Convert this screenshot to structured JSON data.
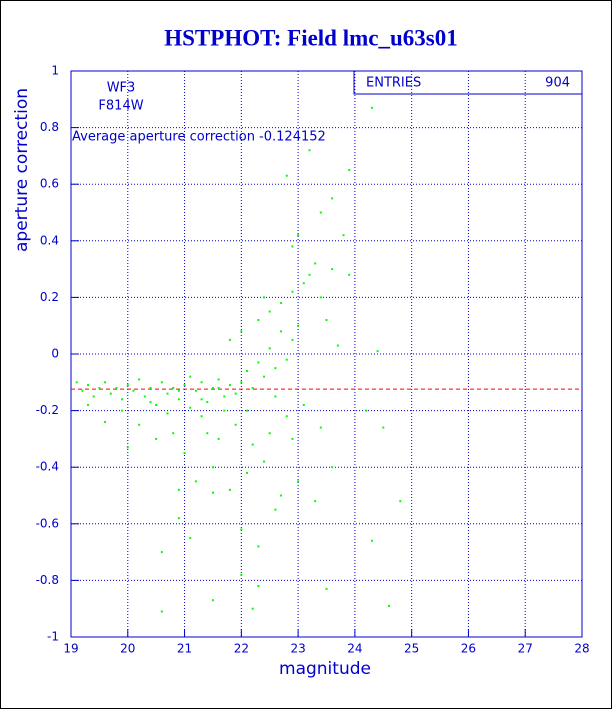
{
  "chart_data": {
    "type": "scatter",
    "title": "HSTPHOT: Field lmc_u63s01",
    "x_label": "magnitude",
    "y_label": "aperture correction",
    "annotations": [
      "WF3",
      "F814W"
    ],
    "average_label": "Average aperture correction -0.124152",
    "average": -0.124152,
    "average_color": "#ff0000",
    "stats": {
      "label": "ENTRIES",
      "value": 904
    },
    "color": "#00ff00",
    "grid": true,
    "xlim": [
      19,
      28
    ],
    "xticks": [
      19,
      20,
      21,
      22,
      23,
      24,
      25,
      26,
      27,
      28
    ],
    "ylim": [
      -1,
      1
    ],
    "yticks": [
      -1,
      -0.8,
      -0.6,
      -0.4,
      -0.2,
      0,
      0.2,
      0.4,
      0.6,
      0.8,
      1
    ],
    "x": [
      19.1,
      19.2,
      19.3,
      19.4,
      19.5,
      19.6,
      19.7,
      19.8,
      19.9,
      20.0,
      20.1,
      20.2,
      20.3,
      20.4,
      20.5,
      20.6,
      20.7,
      20.8,
      20.9,
      21.0,
      21.1,
      21.2,
      21.3,
      21.4,
      21.5,
      21.6,
      21.7,
      21.8,
      21.9,
      22.0,
      22.1,
      22.2,
      22.3,
      22.4,
      22.5,
      22.6,
      22.7,
      22.8,
      22.9,
      23.0,
      22.3,
      22.5,
      22.7,
      22.9,
      23.1,
      23.2,
      23.3,
      23.4,
      23.5,
      23.6,
      23.8,
      23.9,
      22.9,
      23.4,
      23.6,
      23.9,
      23.2,
      22.8,
      24.3,
      23.0,
      22.4,
      22.0,
      21.8,
      23.7,
      24.4,
      20.2,
      20.5,
      20.8,
      21.0,
      21.3,
      21.6,
      21.9,
      22.2,
      22.5,
      22.8,
      23.1,
      23.4,
      21.2,
      21.5,
      21.8,
      22.1,
      22.4,
      22.7,
      23.0,
      23.6,
      24.2,
      24.5,
      20.9,
      20.9,
      21.5,
      22.0,
      22.3,
      22.6,
      23.3,
      24.3,
      24.8,
      20.6,
      21.1,
      22.0,
      22.3,
      23.5,
      21.5,
      22.2,
      20.6,
      24.6,
      19.9,
      19.6,
      19.3,
      20.0,
      21.7,
      21.4,
      22.9,
      21.1,
      20.7,
      22.6,
      22.1,
      21.6,
      21.3,
      20.4,
      20.9
    ],
    "values": [
      -0.1,
      -0.13,
      -0.11,
      -0.15,
      -0.12,
      -0.1,
      -0.14,
      -0.12,
      -0.16,
      -0.11,
      -0.13,
      -0.09,
      -0.15,
      -0.12,
      -0.18,
      -0.1,
      -0.14,
      -0.12,
      -0.16,
      -0.11,
      -0.08,
      -0.13,
      -0.1,
      -0.17,
      -0.12,
      -0.09,
      -0.15,
      -0.11,
      -0.14,
      -0.1,
      -0.06,
      -0.12,
      -0.03,
      -0.08,
      0.02,
      -0.05,
      0.08,
      -0.02,
      0.05,
      0.1,
      0.12,
      0.15,
      0.18,
      0.22,
      0.25,
      0.28,
      0.32,
      0.2,
      0.12,
      0.3,
      0.42,
      0.28,
      0.38,
      0.5,
      0.55,
      0.65,
      0.72,
      0.63,
      0.87,
      0.42,
      0.2,
      0.08,
      0.05,
      0.03,
      0.01,
      -0.25,
      -0.3,
      -0.28,
      -0.35,
      -0.22,
      -0.3,
      -0.25,
      -0.32,
      -0.28,
      -0.22,
      -0.18,
      -0.26,
      -0.45,
      -0.4,
      -0.48,
      -0.42,
      -0.38,
      -0.5,
      -0.45,
      -0.4,
      -0.2,
      -0.26,
      -0.48,
      -0.58,
      -0.49,
      -0.62,
      -0.68,
      -0.55,
      -0.52,
      -0.66,
      -0.52,
      -0.7,
      -0.65,
      -0.78,
      -0.82,
      -0.83,
      -0.87,
      -0.9,
      -0.91,
      -0.89,
      -0.2,
      -0.24,
      -0.18,
      -0.33,
      -0.2,
      -0.28,
      -0.3,
      -0.19,
      -0.21,
      -0.15,
      -0.2,
      -0.12,
      -0.16,
      -0.17,
      -0.13
    ]
  }
}
